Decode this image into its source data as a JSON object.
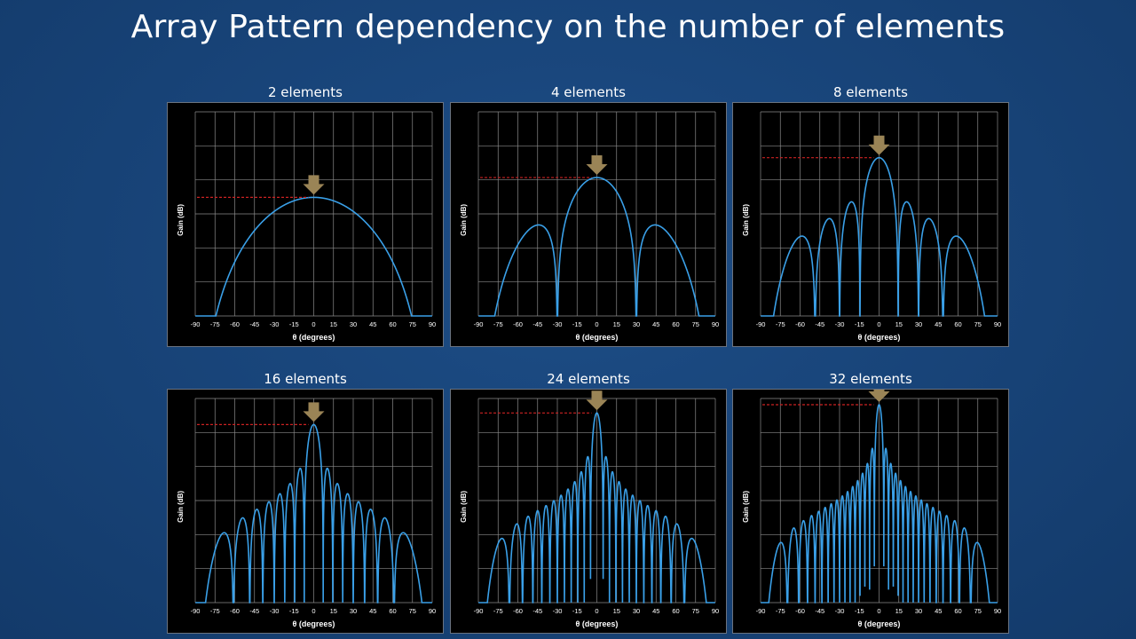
{
  "slide": {
    "title": "Array Pattern dependency on the number of elements"
  },
  "colors": {
    "background": "#174276",
    "plot_background": "#000000",
    "grid": "#8a8a8a",
    "curve": "#3aa0e8",
    "reference_line": "#cc2222",
    "arrow": "#9a8456"
  },
  "chart_data": [
    {
      "type": "line",
      "title": "2 elements",
      "elements": 2,
      "xlabel": "θ (degrees)",
      "ylabel": "Gain (dB)",
      "xlim": [
        -90,
        90
      ],
      "xticks": [
        -90,
        -75,
        -60,
        -45,
        -30,
        -15,
        0,
        15,
        30,
        45,
        60,
        75,
        90
      ],
      "grid": true,
      "annotations": [
        "arrow at peak (θ = 0)",
        "dashed red line at peak gain level"
      ]
    },
    {
      "type": "line",
      "title": "4 elements",
      "elements": 4,
      "xlabel": "θ (degrees)",
      "ylabel": "Gain (dB)",
      "xlim": [
        -90,
        90
      ],
      "xticks": [
        -90,
        -75,
        -60,
        -45,
        -30,
        -15,
        0,
        15,
        30,
        45,
        60,
        75,
        90
      ],
      "grid": true,
      "annotations": [
        "arrow at peak (θ = 0)",
        "dashed red line at peak gain level"
      ]
    },
    {
      "type": "line",
      "title": "8 elements",
      "elements": 8,
      "xlabel": "θ (degrees)",
      "ylabel": "Gain (dB)",
      "xlim": [
        -90,
        90
      ],
      "xticks": [
        -90,
        -75,
        -60,
        -45,
        -30,
        -15,
        0,
        15,
        30,
        45,
        60,
        75,
        90
      ],
      "grid": true,
      "annotations": [
        "arrow at peak (θ = 0)",
        "dashed red line at peak gain level"
      ]
    },
    {
      "type": "line",
      "title": "16 elements",
      "elements": 16,
      "xlabel": "θ (degrees)",
      "ylabel": "Gain (dB)",
      "xlim": [
        -90,
        90
      ],
      "xticks": [
        -90,
        -75,
        -60,
        -45,
        -30,
        -15,
        0,
        15,
        30,
        45,
        60,
        75,
        90
      ],
      "grid": true,
      "annotations": [
        "arrow at peak (θ = 0)",
        "dashed red line at peak gain level"
      ]
    },
    {
      "type": "line",
      "title": "24 elements",
      "elements": 24,
      "xlabel": "θ (degrees)",
      "ylabel": "Gain (dB)",
      "xlim": [
        -90,
        90
      ],
      "xticks": [
        -90,
        -75,
        -60,
        -45,
        -30,
        -15,
        0,
        15,
        30,
        45,
        60,
        75,
        90
      ],
      "grid": true,
      "annotations": [
        "arrow at peak (θ = 0)",
        "dashed red line at peak gain level"
      ]
    },
    {
      "type": "line",
      "title": "32 elements",
      "elements": 32,
      "xlabel": "θ (degrees)",
      "ylabel": "Gain (dB)",
      "xlim": [
        -90,
        90
      ],
      "xticks": [
        -90,
        -75,
        -60,
        -45,
        -30,
        -15,
        0,
        15,
        30,
        45,
        60,
        75,
        90
      ],
      "grid": true,
      "annotations": [
        "arrow at peak (θ = 0)",
        "dashed red line at peak gain level"
      ]
    }
  ]
}
